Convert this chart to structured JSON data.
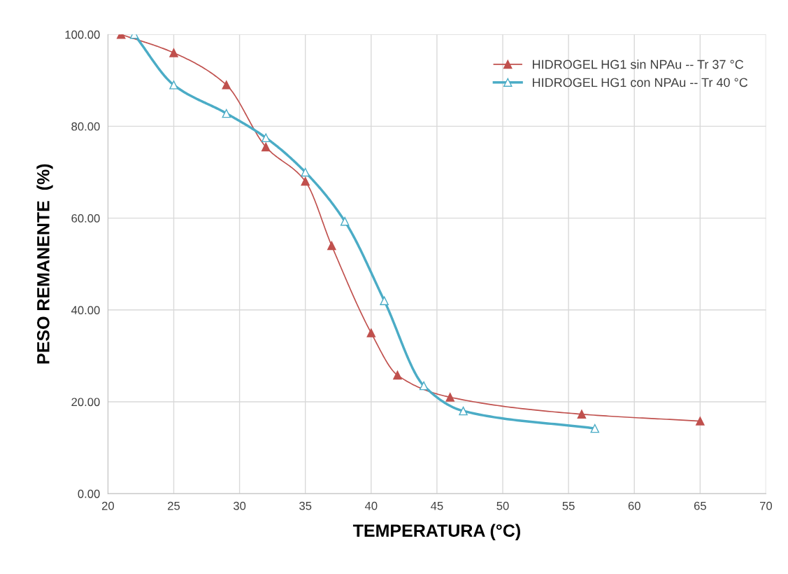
{
  "chart_data": {
    "type": "line",
    "xlabel": "TEMPERATURA (°C)",
    "ylabel": "PESO REMANENTE  (%)",
    "xlim": [
      20,
      70
    ],
    "xticks": [
      20,
      25,
      30,
      35,
      40,
      45,
      50,
      55,
      60,
      65,
      70
    ],
    "ylim": [
      0,
      100
    ],
    "yticks": [
      {
        "value": 0,
        "label": "0.00"
      },
      {
        "value": 20,
        "label": "20.00"
      },
      {
        "value": 40,
        "label": "40.00"
      },
      {
        "value": 60,
        "label": "60.00"
      },
      {
        "value": 80,
        "label": "80.00"
      },
      {
        "value": 100,
        "label": "100.00"
      }
    ],
    "grid": true,
    "legend": "top right",
    "marker": "triangle",
    "line_style": "solid",
    "series": [
      {
        "name": "HIDROGEL HG1 sin NPAu -- Tr 37 °C",
        "color": "#c0504d",
        "x": [
          21,
          25,
          29,
          32,
          35,
          37,
          40,
          42,
          46,
          56,
          65
        ],
        "values": [
          100,
          96,
          89,
          75.5,
          68,
          54,
          35,
          25.8,
          21,
          17.3,
          15.8
        ]
      },
      {
        "name": "HIDROGEL HG1 con NPAu -- Tr 40 °C",
        "color": "#4bacc6",
        "x": [
          22,
          25,
          29,
          32,
          35,
          38,
          41,
          44,
          47,
          57
        ],
        "values": [
          100,
          89,
          82.8,
          77.5,
          70,
          59.3,
          42,
          23.5,
          18,
          14.2
        ]
      }
    ]
  }
}
